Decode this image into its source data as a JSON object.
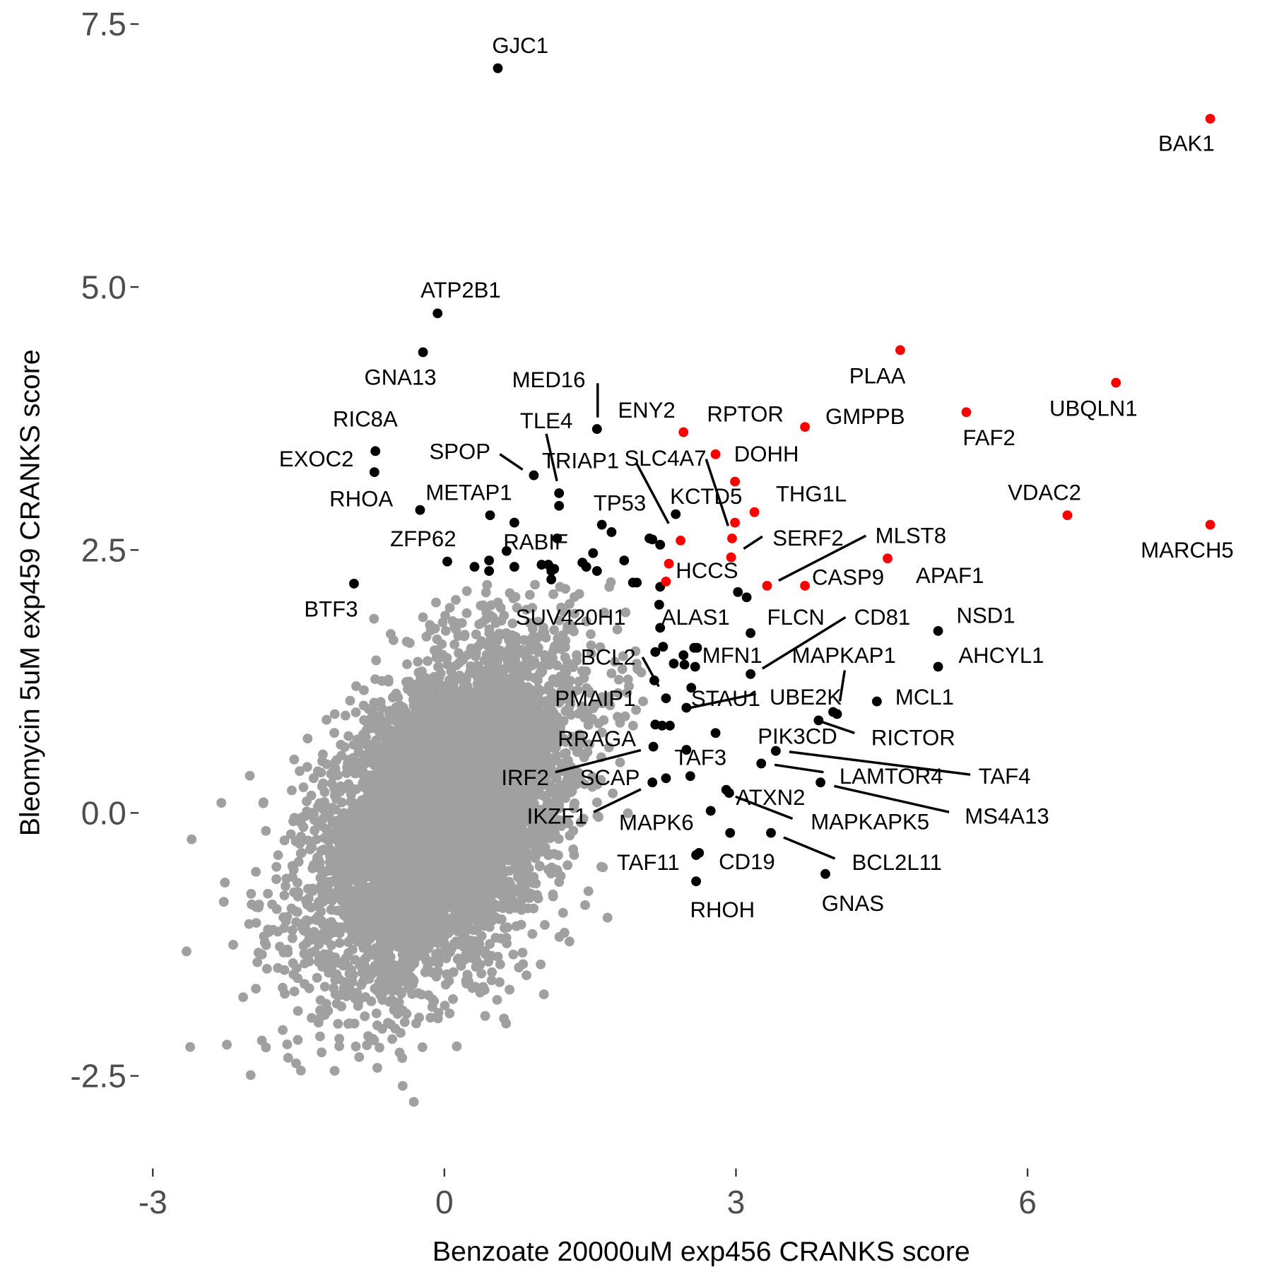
{
  "chart_data": {
    "type": "scatter",
    "title": "",
    "xlabel": "Benzoate 20000uM exp456 CRANKS score",
    "ylabel": "Bleomycin 5uM exp459 CRANKS score",
    "xlim": [
      -3.2,
      8.3
    ],
    "ylim": [
      -3.35,
      7.7
    ],
    "xticks": [
      -3,
      0,
      3,
      6
    ],
    "xtick_labels": [
      "-3",
      "0",
      "3",
      "6"
    ],
    "yticks": [
      -2.5,
      0,
      2.5,
      5,
      7.5
    ],
    "ytick_labels": [
      "-2.5",
      "0.0",
      "2.5",
      "5.0",
      "7.5"
    ],
    "grid": false,
    "legend": "none",
    "colors": {
      "background_points": "#a0a0a0",
      "highlight_black": "#000000",
      "highlight_red": "#ff0000",
      "tick_text": "#4d4d4d"
    },
    "background_points": {
      "color": "#a0a0a0",
      "description_of_distribution": "dense cloud centered near (0,0)"
    },
    "red_points": [
      {
        "label": "BAK1",
        "x": 7.88,
        "y": 6.6
      },
      {
        "label": "UBQLN1",
        "x": 6.91,
        "y": 4.09
      },
      {
        "label": "FAF2",
        "x": 5.37,
        "y": 3.81
      },
      {
        "label": "PLAA",
        "x": 4.69,
        "y": 4.4
      },
      {
        "label": "MARCH5",
        "x": 7.88,
        "y": 2.74
      },
      {
        "label": "VDAC2",
        "x": 6.41,
        "y": 2.83
      },
      {
        "label": "GMPPB",
        "x": 3.71,
        "y": 3.67
      },
      {
        "label": "ENY2",
        "x": 2.46,
        "y": 3.62
      },
      {
        "label": "DOHH",
        "x": 2.79,
        "y": 3.41
      },
      {
        "label": "RPTOR",
        "x": 2.99,
        "y": 3.15
      },
      {
        "label": "THG1L",
        "x": 3.19,
        "y": 2.86
      },
      {
        "label": "SLC4A7",
        "x": 2.99,
        "y": 2.76
      },
      {
        "label": "SERF2",
        "x": 2.96,
        "y": 2.61
      },
      {
        "label": "",
        "x": 2.95,
        "y": 2.43
      },
      {
        "label": "",
        "x": 2.43,
        "y": 2.59
      },
      {
        "label": "HCCS",
        "x": 2.31,
        "y": 2.37
      },
      {
        "label": "",
        "x": 2.28,
        "y": 2.2
      },
      {
        "label": "MLST8",
        "x": 3.32,
        "y": 2.16
      },
      {
        "label": "CASP9",
        "x": 3.71,
        "y": 2.16
      },
      {
        "label": "APAF1",
        "x": 4.56,
        "y": 2.42
      }
    ],
    "black_points": [
      {
        "label": "GJC1",
        "x": 0.55,
        "y": 7.08
      },
      {
        "label": "ATP2B1",
        "x": -0.07,
        "y": 4.75
      },
      {
        "label": "GNA13",
        "x": -0.22,
        "y": 4.38
      },
      {
        "label": "RIC8A",
        "x": -0.71,
        "y": 3.44
      },
      {
        "label": "EXOC2",
        "x": -0.72,
        "y": 3.24
      },
      {
        "label": "RHOA",
        "x": -0.25,
        "y": 2.88
      },
      {
        "label": "METAP1",
        "x": 0.47,
        "y": 2.83
      },
      {
        "label": "ZFP62",
        "x": 0.03,
        "y": 2.39
      },
      {
        "label": "BTF3",
        "x": -0.93,
        "y": 2.18
      },
      {
        "label": "SPOP",
        "x": 0.92,
        "y": 3.21
      },
      {
        "label": "TLE4",
        "x": 1.18,
        "y": 3.04
      },
      {
        "label": "MED16",
        "x": 1.57,
        "y": 3.65
      },
      {
        "label": "TRIAP1",
        "x": 2.38,
        "y": 2.84
      },
      {
        "label": "TP53",
        "x": 1.62,
        "y": 2.74
      },
      {
        "label": "RABIF",
        "x": 1.16,
        "y": 2.61
      },
      {
        "label": "KCTD5",
        "x": 2.22,
        "y": 2.55
      },
      {
        "label": "SUV420H1",
        "x": 1.94,
        "y": 2.19
      },
      {
        "label": "ALAS1",
        "x": 2.22,
        "y": 1.76
      },
      {
        "label": "FLCN",
        "x": 3.15,
        "y": 1.71
      },
      {
        "label": "CD81",
        "x": 3.15,
        "y": 1.32
      },
      {
        "label": "MFN1",
        "x": 2.6,
        "y": 1.57
      },
      {
        "label": "NSD1",
        "x": 5.08,
        "y": 1.73
      },
      {
        "label": "AHCYL1",
        "x": 5.08,
        "y": 1.39
      },
      {
        "label": "MCL1",
        "x": 4.45,
        "y": 1.06
      },
      {
        "label": "MAPKAP1",
        "x": 4.04,
        "y": 0.94
      },
      {
        "label": "UBE2K",
        "x": 4.0,
        "y": 0.96
      },
      {
        "label": "RICTOR",
        "x": 3.85,
        "y": 0.88
      },
      {
        "label": "BCL2",
        "x": 2.16,
        "y": 1.26
      },
      {
        "label": "PMAIP1",
        "x": 2.28,
        "y": 1.09
      },
      {
        "label": "STAU1",
        "x": 2.49,
        "y": 1.0
      },
      {
        "label": "RRAGA",
        "x": 2.17,
        "y": 0.84
      },
      {
        "label": "IRF2",
        "x": 2.15,
        "y": 0.63
      },
      {
        "label": "TAF3",
        "x": 2.49,
        "y": 0.6
      },
      {
        "label": "SCAP",
        "x": 2.28,
        "y": 0.33
      },
      {
        "label": "IKZF1",
        "x": 2.14,
        "y": 0.29
      },
      {
        "label": "PIK3CD",
        "x": 2.79,
        "y": 0.76
      },
      {
        "label": "TAF4",
        "x": 3.41,
        "y": 0.59
      },
      {
        "label": "LAMTOR4",
        "x": 3.26,
        "y": 0.47
      },
      {
        "label": "MS4A13",
        "x": 3.87,
        "y": 0.29
      },
      {
        "label": "ATXN2",
        "x": 2.93,
        "y": 0.19
      },
      {
        "label": "MAPKAPK5",
        "x": 2.9,
        "y": 0.22
      },
      {
        "label": "MAPK6",
        "x": 2.74,
        "y": 0.02
      },
      {
        "label": "BCL2L11",
        "x": 3.36,
        "y": -0.19
      },
      {
        "label": "TAF11",
        "x": 2.59,
        "y": -0.4
      },
      {
        "label": "CD19",
        "x": 2.62,
        "y": -0.38
      },
      {
        "label": "RHOH",
        "x": 2.59,
        "y": -0.65
      },
      {
        "label": "GNAS",
        "x": 3.92,
        "y": -0.58
      },
      {
        "label": "",
        "x": 2.53,
        "y": 0.35
      },
      {
        "label": "",
        "x": 2.94,
        "y": -0.19
      },
      {
        "label": "",
        "x": 0.31,
        "y": 2.34
      },
      {
        "label": "",
        "x": 0.46,
        "y": 2.4
      },
      {
        "label": "",
        "x": 0.46,
        "y": 2.3
      },
      {
        "label": "",
        "x": 0.64,
        "y": 2.49
      },
      {
        "label": "",
        "x": 0.72,
        "y": 2.76
      },
      {
        "label": "",
        "x": 0.72,
        "y": 2.34
      },
      {
        "label": "",
        "x": 1.0,
        "y": 2.36
      },
      {
        "label": "",
        "x": 1.07,
        "y": 2.36
      },
      {
        "label": "",
        "x": 1.1,
        "y": 2.3
      },
      {
        "label": "",
        "x": 1.1,
        "y": 2.22
      },
      {
        "label": "",
        "x": 1.13,
        "y": 2.32
      },
      {
        "label": "",
        "x": 1.42,
        "y": 2.38
      },
      {
        "label": "",
        "x": 1.46,
        "y": 2.34
      },
      {
        "label": "",
        "x": 1.53,
        "y": 2.47
      },
      {
        "label": "",
        "x": 1.57,
        "y": 2.3
      },
      {
        "label": "",
        "x": 1.72,
        "y": 2.67
      },
      {
        "label": "",
        "x": 1.85,
        "y": 2.4
      },
      {
        "label": "",
        "x": 1.98,
        "y": 2.19
      },
      {
        "label": "",
        "x": 2.11,
        "y": 2.61
      },
      {
        "label": "",
        "x": 2.14,
        "y": 2.6
      },
      {
        "label": "",
        "x": 2.22,
        "y": 2.15
      },
      {
        "label": "",
        "x": 2.21,
        "y": 1.98
      },
      {
        "label": "",
        "x": 2.25,
        "y": 1.58
      },
      {
        "label": "",
        "x": 2.17,
        "y": 1.53
      },
      {
        "label": "",
        "x": 2.36,
        "y": 1.42
      },
      {
        "label": "",
        "x": 2.46,
        "y": 1.5
      },
      {
        "label": "",
        "x": 2.47,
        "y": 1.41
      },
      {
        "label": "",
        "x": 2.58,
        "y": 1.39
      },
      {
        "label": "",
        "x": 2.57,
        "y": 1.57
      },
      {
        "label": "",
        "x": 2.54,
        "y": 1.19
      },
      {
        "label": "",
        "x": 2.24,
        "y": 0.83
      },
      {
        "label": "",
        "x": 2.32,
        "y": 0.83
      },
      {
        "label": "",
        "x": 3.02,
        "y": 2.1
      },
      {
        "label": "",
        "x": 3.11,
        "y": 2.05
      },
      {
        "label": "",
        "x": 1.18,
        "y": 2.92
      }
    ]
  }
}
